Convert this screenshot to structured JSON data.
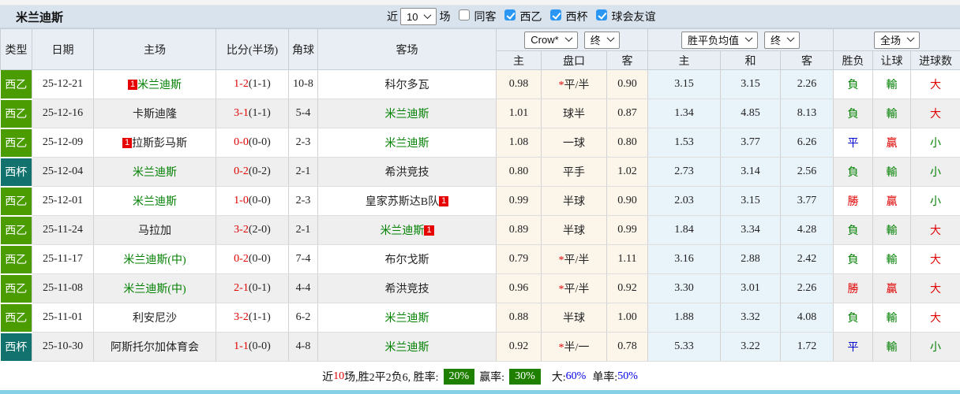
{
  "title": "米兰迪斯",
  "toolbar": {
    "recent_label": "近",
    "recent_value": "10",
    "recent_suffix": "场",
    "checkboxes": [
      {
        "label": "同客",
        "checked": false
      },
      {
        "label": "西乙",
        "checked": true
      },
      {
        "label": "西杯",
        "checked": true
      },
      {
        "label": "球会友谊",
        "checked": true
      }
    ]
  },
  "section_selects": {
    "bookmaker": "Crow*",
    "odds_time": "终",
    "avg_type": "胜平负均值",
    "avg_time": "终",
    "scope": "全场"
  },
  "columns": {
    "type": "类型",
    "date": "日期",
    "home": "主场",
    "score": "比分(半场)",
    "corners": "角球",
    "away": "客场",
    "odds_home": "主",
    "handicap": "盘口",
    "odds_away": "客",
    "avg_home": "主",
    "avg_draw": "和",
    "avg_away": "客",
    "result": "胜负",
    "handicap_result": "让球",
    "goals": "进球数"
  },
  "table": {
    "rows": [
      {
        "type": "西乙",
        "type_style": "league",
        "date": "25-12-21",
        "home": {
          "text": "米兰迪斯",
          "green": true,
          "badge": "1",
          "badge_pos": "before"
        },
        "score": "1-2",
        "half": "(1-1)",
        "corners": "10-8",
        "away": {
          "text": "科尔多瓦",
          "green": false
        },
        "odds_home": "0.98",
        "handicap": "平/半",
        "handicap_star": true,
        "odds_away": "0.90",
        "avg_home": "3.15",
        "avg_draw": "3.15",
        "avg_away": "2.26",
        "result": {
          "text": "負",
          "color": "green"
        },
        "handicap_result": {
          "text": "輸",
          "color": "green"
        },
        "goals": {
          "text": "大",
          "color": "red"
        }
      },
      {
        "type": "西乙",
        "type_style": "league",
        "date": "25-12-16",
        "home": {
          "text": "卡斯迪隆",
          "green": false
        },
        "score": "3-1",
        "half": "(1-1)",
        "corners": "5-4",
        "away": {
          "text": "米兰迪斯",
          "green": true
        },
        "odds_home": "1.01",
        "handicap": "球半",
        "handicap_star": false,
        "odds_away": "0.87",
        "avg_home": "1.34",
        "avg_draw": "4.85",
        "avg_away": "8.13",
        "result": {
          "text": "負",
          "color": "green"
        },
        "handicap_result": {
          "text": "輸",
          "color": "green"
        },
        "goals": {
          "text": "大",
          "color": "red"
        }
      },
      {
        "type": "西乙",
        "type_style": "league",
        "date": "25-12-09",
        "home": {
          "text": "拉斯彭马斯",
          "green": false,
          "badge": "1",
          "badge_pos": "before"
        },
        "score": "0-0",
        "half": "(0-0)",
        "corners": "2-3",
        "away": {
          "text": "米兰迪斯",
          "green": true
        },
        "odds_home": "1.08",
        "handicap": "一球",
        "handicap_star": false,
        "odds_away": "0.80",
        "avg_home": "1.53",
        "avg_draw": "3.77",
        "avg_away": "6.26",
        "result": {
          "text": "平",
          "color": "blue"
        },
        "handicap_result": {
          "text": "贏",
          "color": "red"
        },
        "goals": {
          "text": "小",
          "color": "green"
        }
      },
      {
        "type": "西杯",
        "type_style": "cup",
        "date": "25-12-04",
        "home": {
          "text": "米兰迪斯",
          "green": true
        },
        "score": "0-2",
        "half": "(0-2)",
        "corners": "2-1",
        "away": {
          "text": "希洪竞技",
          "green": false
        },
        "odds_home": "0.80",
        "handicap": "平手",
        "handicap_star": false,
        "odds_away": "1.02",
        "avg_home": "2.73",
        "avg_draw": "3.14",
        "avg_away": "2.56",
        "result": {
          "text": "負",
          "color": "green"
        },
        "handicap_result": {
          "text": "輸",
          "color": "green"
        },
        "goals": {
          "text": "小",
          "color": "green"
        }
      },
      {
        "type": "西乙",
        "type_style": "league",
        "date": "25-12-01",
        "home": {
          "text": "米兰迪斯",
          "green": true
        },
        "score": "1-0",
        "half": "(0-0)",
        "corners": "2-3",
        "away": {
          "text": "皇家苏斯达B队",
          "green": false,
          "badge": "1",
          "badge_pos": "after"
        },
        "odds_home": "0.99",
        "handicap": "半球",
        "handicap_star": false,
        "odds_away": "0.90",
        "avg_home": "2.03",
        "avg_draw": "3.15",
        "avg_away": "3.77",
        "result": {
          "text": "勝",
          "color": "red"
        },
        "handicap_result": {
          "text": "贏",
          "color": "red"
        },
        "goals": {
          "text": "小",
          "color": "green"
        }
      },
      {
        "type": "西乙",
        "type_style": "league",
        "date": "25-11-24",
        "home": {
          "text": "马拉加",
          "green": false
        },
        "score": "3-2",
        "half": "(2-0)",
        "corners": "2-1",
        "away": {
          "text": "米兰迪斯",
          "green": true,
          "badge": "1",
          "badge_pos": "after"
        },
        "odds_home": "0.89",
        "handicap": "半球",
        "handicap_star": false,
        "odds_away": "0.99",
        "avg_home": "1.84",
        "avg_draw": "3.34",
        "avg_away": "4.28",
        "result": {
          "text": "負",
          "color": "green"
        },
        "handicap_result": {
          "text": "輸",
          "color": "green"
        },
        "goals": {
          "text": "大",
          "color": "red"
        }
      },
      {
        "type": "西乙",
        "type_style": "league",
        "date": "25-11-17",
        "home": {
          "text": "米兰迪斯(中)",
          "green": true
        },
        "score": "0-2",
        "half": "(0-0)",
        "corners": "7-4",
        "away": {
          "text": "布尔戈斯",
          "green": false
        },
        "odds_home": "0.79",
        "handicap": "平/半",
        "handicap_star": true,
        "odds_away": "1.11",
        "avg_home": "3.16",
        "avg_draw": "2.88",
        "avg_away": "2.42",
        "result": {
          "text": "負",
          "color": "green"
        },
        "handicap_result": {
          "text": "輸",
          "color": "green"
        },
        "goals": {
          "text": "大",
          "color": "red"
        }
      },
      {
        "type": "西乙",
        "type_style": "league",
        "date": "25-11-08",
        "home": {
          "text": "米兰迪斯(中)",
          "green": true
        },
        "score": "2-1",
        "half": "(0-1)",
        "corners": "4-4",
        "away": {
          "text": "希洪竞技",
          "green": false
        },
        "odds_home": "0.96",
        "handicap": "平/半",
        "handicap_star": true,
        "odds_away": "0.92",
        "avg_home": "3.30",
        "avg_draw": "3.01",
        "avg_away": "2.26",
        "result": {
          "text": "勝",
          "color": "red"
        },
        "handicap_result": {
          "text": "贏",
          "color": "red"
        },
        "goals": {
          "text": "大",
          "color": "red"
        }
      },
      {
        "type": "西乙",
        "type_style": "league",
        "date": "25-11-01",
        "home": {
          "text": "利安尼沙",
          "green": false
        },
        "score": "3-2",
        "half": "(1-1)",
        "corners": "6-2",
        "away": {
          "text": "米兰迪斯",
          "green": true
        },
        "odds_home": "0.88",
        "handicap": "半球",
        "handicap_star": false,
        "odds_away": "1.00",
        "avg_home": "1.88",
        "avg_draw": "3.32",
        "avg_away": "4.08",
        "result": {
          "text": "負",
          "color": "green"
        },
        "handicap_result": {
          "text": "輸",
          "color": "green"
        },
        "goals": {
          "text": "大",
          "color": "red"
        }
      },
      {
        "type": "西杯",
        "type_style": "cup",
        "date": "25-10-30",
        "home": {
          "text": "阿斯托尔加体育会",
          "green": false
        },
        "score": "1-1",
        "half": "(0-0)",
        "corners": "4-8",
        "away": {
          "text": "米兰迪斯",
          "green": true
        },
        "odds_home": "0.92",
        "handicap": "半/一",
        "handicap_star": true,
        "odds_away": "0.78",
        "avg_home": "5.33",
        "avg_draw": "3.22",
        "avg_away": "1.72",
        "result": {
          "text": "平",
          "color": "blue"
        },
        "handicap_result": {
          "text": "輸",
          "color": "green"
        },
        "goals": {
          "text": "小",
          "color": "green"
        }
      }
    ]
  },
  "summary": {
    "prefix": "近",
    "count": "10",
    "mid": "场,胜2平2负6, 胜率:",
    "win_rate": "20%",
    "win_label": "赢率:",
    "win_pct": "30%",
    "big_label": "大:",
    "big_pct": "60%",
    "odd_label": "单率:",
    "odd_pct": "50%"
  },
  "colors": {
    "league_badge": "#4a9c00",
    "cup_badge": "#11726e",
    "team_highlight": "#008000",
    "score_red": "#e00000",
    "odds_bg": "#fbf5ea",
    "avg_bg": "#e9f3fa",
    "rate_badge_bg": "#1f8000",
    "pct_blue": "#0000e6",
    "titlebar_bg": "#d9e3ee",
    "bottom_line": "#85d0e6"
  }
}
